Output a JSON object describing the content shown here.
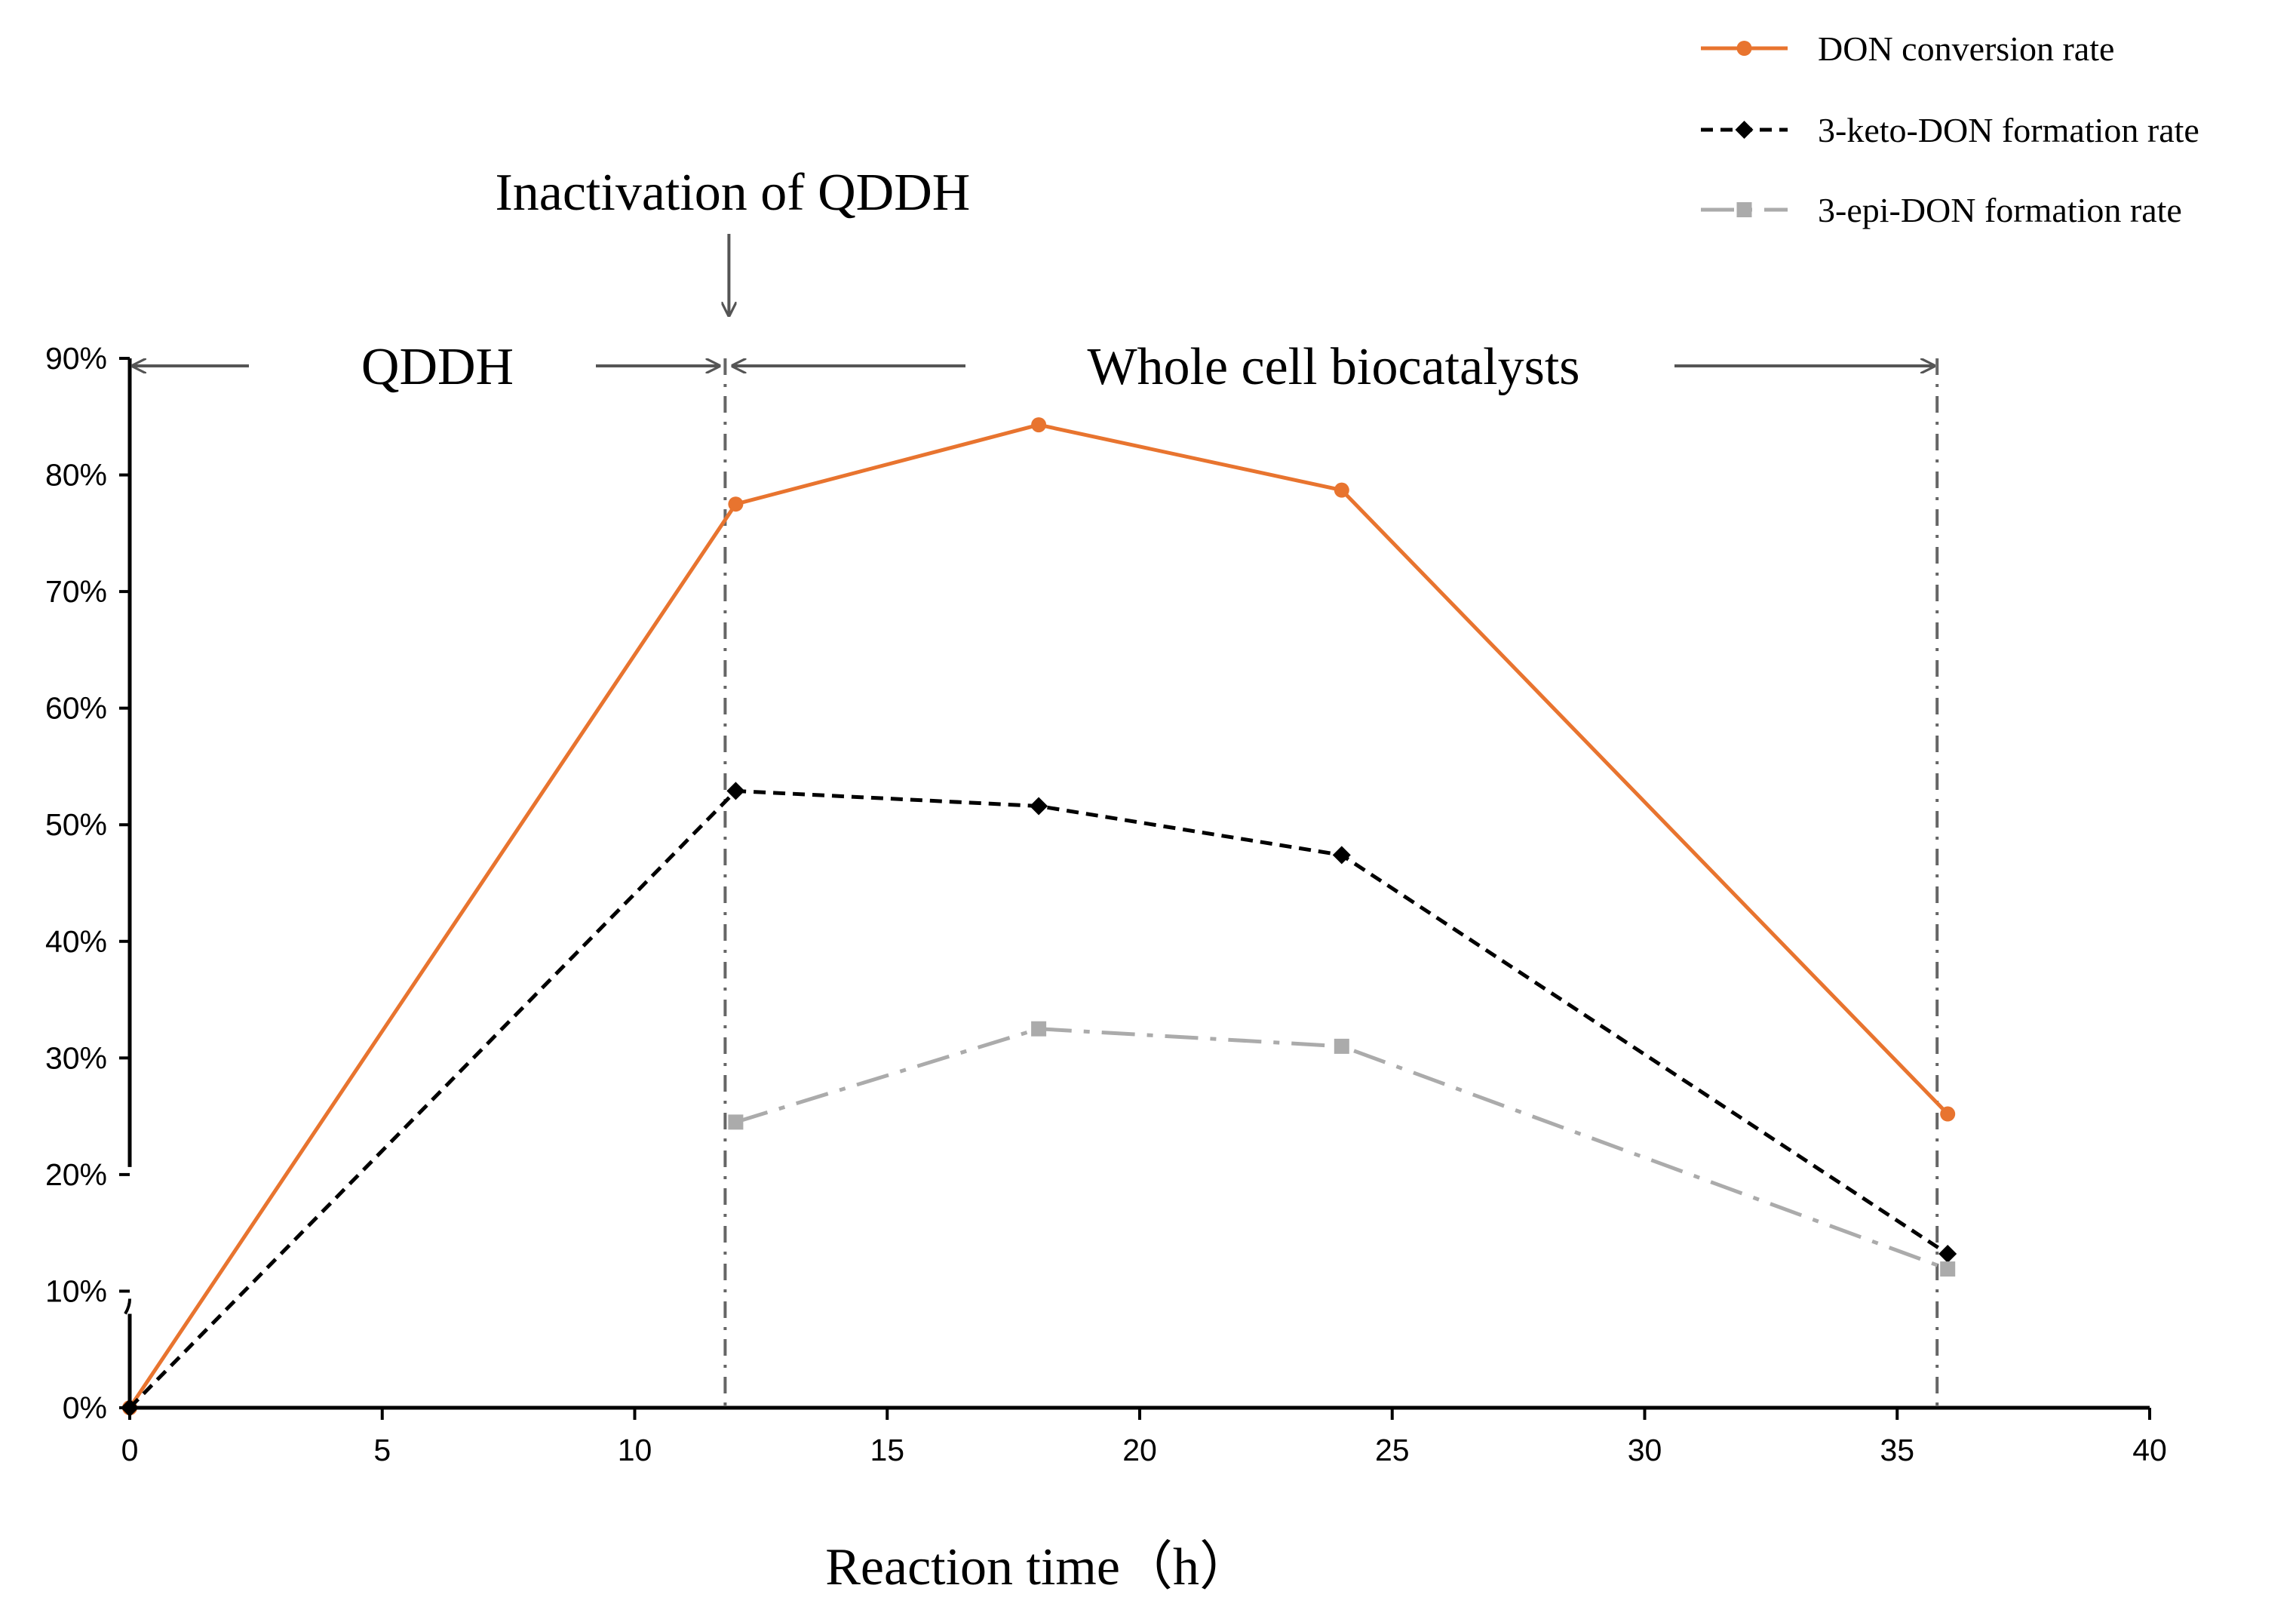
{
  "chart_data": {
    "type": "line",
    "title": "",
    "xlabel": "Reaction time（h）",
    "ylabel": "",
    "xlim": [
      0,
      40
    ],
    "ylim": [
      0,
      90
    ],
    "x_ticks": [
      "0",
      "5",
      "10",
      "15",
      "20",
      "25",
      "30",
      "35",
      "40"
    ],
    "y_ticks": [
      "0%",
      "10%",
      "20%",
      "30%",
      "40%",
      "50%",
      "60%",
      "70%",
      "80%",
      "90%"
    ],
    "axis_break": [
      10,
      20
    ],
    "series": [
      {
        "name": "DON conversion rate",
        "color": "#E8742F",
        "style": "solid",
        "marker": "circle",
        "x": [
          0,
          12,
          18,
          24,
          36
        ],
        "values": [
          0,
          77.5,
          84.3,
          78.7,
          25.2
        ]
      },
      {
        "name": "3-keto-DON formation rate",
        "color": "#000000",
        "style": "dashed",
        "marker": "diamond",
        "x": [
          0,
          12,
          18,
          24,
          36
        ],
        "values": [
          0,
          52.9,
          51.6,
          47.4,
          13.2
        ]
      },
      {
        "name": "3-epi-DON formation rate",
        "color": "#ABABAB",
        "style": "dashdot",
        "marker": "square",
        "x": [
          12,
          18,
          24,
          36
        ],
        "values": [
          24.5,
          32.5,
          31.0,
          11.9
        ]
      }
    ],
    "phase_lines_x": [
      12,
      36
    ],
    "annotations": {
      "inactivation": "Inactivation of QDDH",
      "phase1": "QDDH",
      "phase2": "Whole cell biocatalysts"
    },
    "legend_position": "top-right"
  }
}
